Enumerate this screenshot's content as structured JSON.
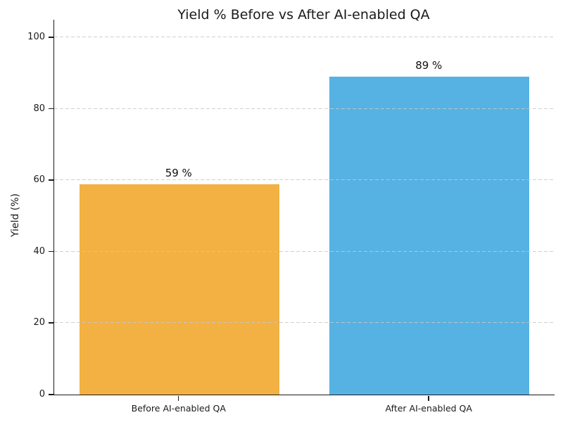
{
  "chart_data": {
    "type": "bar",
    "title": "Yield % Before vs After AI-enabled QA",
    "xlabel": "",
    "ylabel": "Yield (%)",
    "categories": [
      "Before AI-enabled QA",
      "After AI-enabled QA"
    ],
    "values": [
      59,
      89
    ],
    "bar_labels": [
      "59 %",
      "89 %"
    ],
    "bar_colors": [
      "#f2b142",
      "#56b2e3"
    ],
    "yticks": [
      0,
      20,
      40,
      60,
      80,
      100
    ],
    "ylim": [
      0,
      105
    ],
    "grid": "horizontal-dashed",
    "grid_color": "#c8c8c8",
    "legend": "none",
    "background_color": "#ffffff",
    "text_color": "#1a1a1a",
    "bar_width_fraction": 0.8
  }
}
